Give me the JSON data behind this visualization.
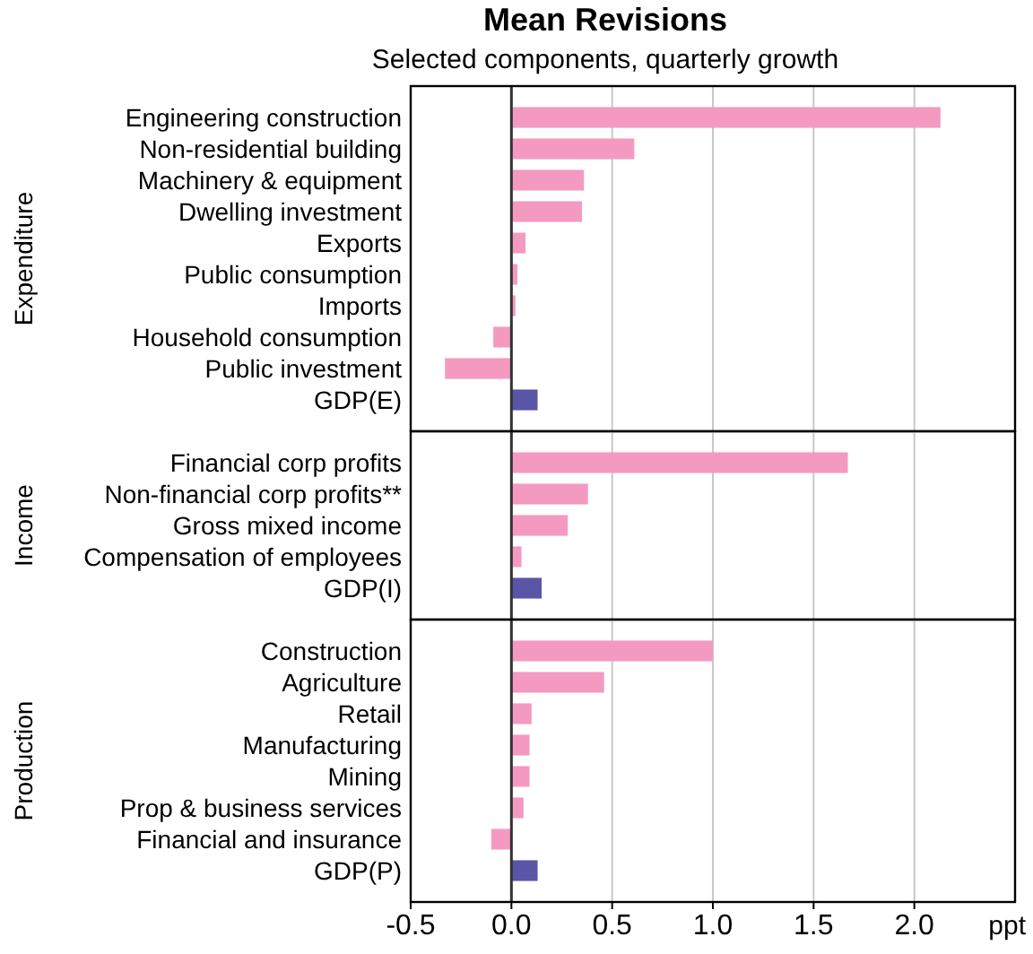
{
  "chart_data": [
    {
      "type": "bar",
      "orientation": "horizontal",
      "title": "Mean Revisions",
      "subtitle": "Selected components, quarterly growth",
      "ylabel": "Expenditure",
      "categories": [
        "Engineering construction",
        "Non-residential building",
        "Machinery & equipment",
        "Dwelling investment",
        "Exports",
        "Public consumption",
        "Imports",
        "Household consumption",
        "Public investment",
        "GDP(E)"
      ],
      "values": [
        2.13,
        0.61,
        0.36,
        0.35,
        0.07,
        0.03,
        0.02,
        -0.09,
        -0.33,
        0.13
      ],
      "colors": [
        "#f49ac1",
        "#f49ac1",
        "#f49ac1",
        "#f49ac1",
        "#f49ac1",
        "#f49ac1",
        "#f49ac1",
        "#f49ac1",
        "#f49ac1",
        "#5a55a7"
      ],
      "xlim": [
        -0.5,
        2.5
      ],
      "xticks": [
        {
          "value": -0.5,
          "label": null
        },
        {
          "value": 0,
          "label": null
        },
        {
          "value": 0.5,
          "label": null
        },
        {
          "value": 1,
          "label": null
        },
        {
          "value": 1.5,
          "label": null
        },
        {
          "value": 2,
          "label": null
        }
      ],
      "grid": "x",
      "tick_labels": "y"
    },
    {
      "type": "bar",
      "orientation": "horizontal",
      "ylabel": "Income",
      "categories": [
        "Financial corp profits",
        "Non-financial corp profits**",
        "Gross mixed income",
        "Compensation of employees",
        "GDP(I)"
      ],
      "values": [
        1.67,
        0.38,
        0.28,
        0.05,
        0.15
      ],
      "colors": [
        "#f49ac1",
        "#f49ac1",
        "#f49ac1",
        "#f49ac1",
        "#5a55a7"
      ],
      "xlim": [
        -0.5,
        2.5
      ],
      "xticks": [
        {
          "value": -0.5,
          "label": null
        },
        {
          "value": 0,
          "label": null
        },
        {
          "value": 0.5,
          "label": null
        },
        {
          "value": 1,
          "label": null
        },
        {
          "value": 1.5,
          "label": null
        },
        {
          "value": 2,
          "label": null
        }
      ],
      "grid": "x",
      "tick_labels": "y"
    },
    {
      "type": "bar",
      "orientation": "horizontal",
      "ylabel": "Production",
      "xlabel": "ppt",
      "categories": [
        "Construction",
        "Agriculture",
        "Retail",
        "Manufacturing",
        "Mining",
        "Prop & business services",
        "Financial and insurance",
        "GDP(P)"
      ],
      "values": [
        1.0,
        0.46,
        0.1,
        0.09,
        0.09,
        0.06,
        -0.1,
        0.13
      ],
      "colors": [
        "#f49ac1",
        "#f49ac1",
        "#f49ac1",
        "#f49ac1",
        "#f49ac1",
        "#f49ac1",
        "#f49ac1",
        "#5a55a7"
      ],
      "xlim": [
        -0.5,
        2.5
      ],
      "xticks": [
        {
          "value": -0.5,
          "label": "-0.5"
        },
        {
          "value": 0,
          "label": "0.0"
        },
        {
          "value": 0.5,
          "label": "0.5"
        },
        {
          "value": 1,
          "label": "1.0"
        },
        {
          "value": 1.5,
          "label": "1.5"
        },
        {
          "value": 2,
          "label": "2.0"
        }
      ],
      "grid": "x"
    }
  ]
}
